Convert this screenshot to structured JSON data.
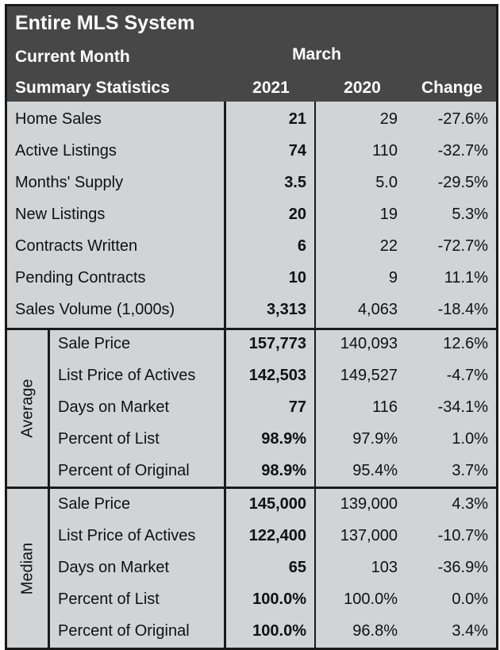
{
  "header": {
    "title": "Entire MLS System",
    "current_month": "Current Month",
    "summary": "Summary Statistics",
    "month": "March",
    "col_2021": "2021",
    "col_2020": "2020",
    "col_change": "Change"
  },
  "summary_rows": [
    {
      "label": "Home Sales",
      "v2021": "21",
      "v2020": "29",
      "change": "-27.6%"
    },
    {
      "label": "Active Listings",
      "v2021": "74",
      "v2020": "110",
      "change": "-32.7%"
    },
    {
      "label": "Months' Supply",
      "v2021": "3.5",
      "v2020": "5.0",
      "change": "-29.5%"
    },
    {
      "label": "New Listings",
      "v2021": "20",
      "v2020": "19",
      "change": "5.3%"
    },
    {
      "label": "Contracts Written",
      "v2021": "6",
      "v2020": "22",
      "change": "-72.7%"
    },
    {
      "label": "Pending Contracts",
      "v2021": "10",
      "v2020": "9",
      "change": "11.1%"
    },
    {
      "label": "Sales Volume (1,000s)",
      "v2021": "3,313",
      "v2020": "4,063",
      "change": "-18.4%"
    }
  ],
  "average": {
    "label": "Average",
    "rows": [
      {
        "label": "Sale Price",
        "v2021": "157,773",
        "v2020": "140,093",
        "change": "12.6%"
      },
      {
        "label": "List Price of Actives",
        "v2021": "142,503",
        "v2020": "149,527",
        "change": "-4.7%"
      },
      {
        "label": "Days on Market",
        "v2021": "77",
        "v2020": "116",
        "change": "-34.1%"
      },
      {
        "label": "Percent of List",
        "v2021": "98.9%",
        "v2020": "97.9%",
        "change": "1.0%"
      },
      {
        "label": "Percent of Original",
        "v2021": "98.9%",
        "v2020": "95.4%",
        "change": "3.7%"
      }
    ]
  },
  "median": {
    "label": "Median",
    "rows": [
      {
        "label": "Sale Price",
        "v2021": "145,000",
        "v2020": "139,000",
        "change": "4.3%"
      },
      {
        "label": "List Price of Actives",
        "v2021": "122,400",
        "v2020": "137,000",
        "change": "-10.7%"
      },
      {
        "label": "Days on Market",
        "v2021": "65",
        "v2020": "103",
        "change": "-36.9%"
      },
      {
        "label": "Percent of List",
        "v2021": "100.0%",
        "v2020": "100.0%",
        "change": "0.0%"
      },
      {
        "label": "Percent of Original",
        "v2021": "100.0%",
        "v2020": "96.8%",
        "change": "3.4%"
      }
    ]
  },
  "colors": {
    "header_bg": "#474747",
    "table_bg": "#d2d3d5",
    "border": "#1a1a1a"
  }
}
